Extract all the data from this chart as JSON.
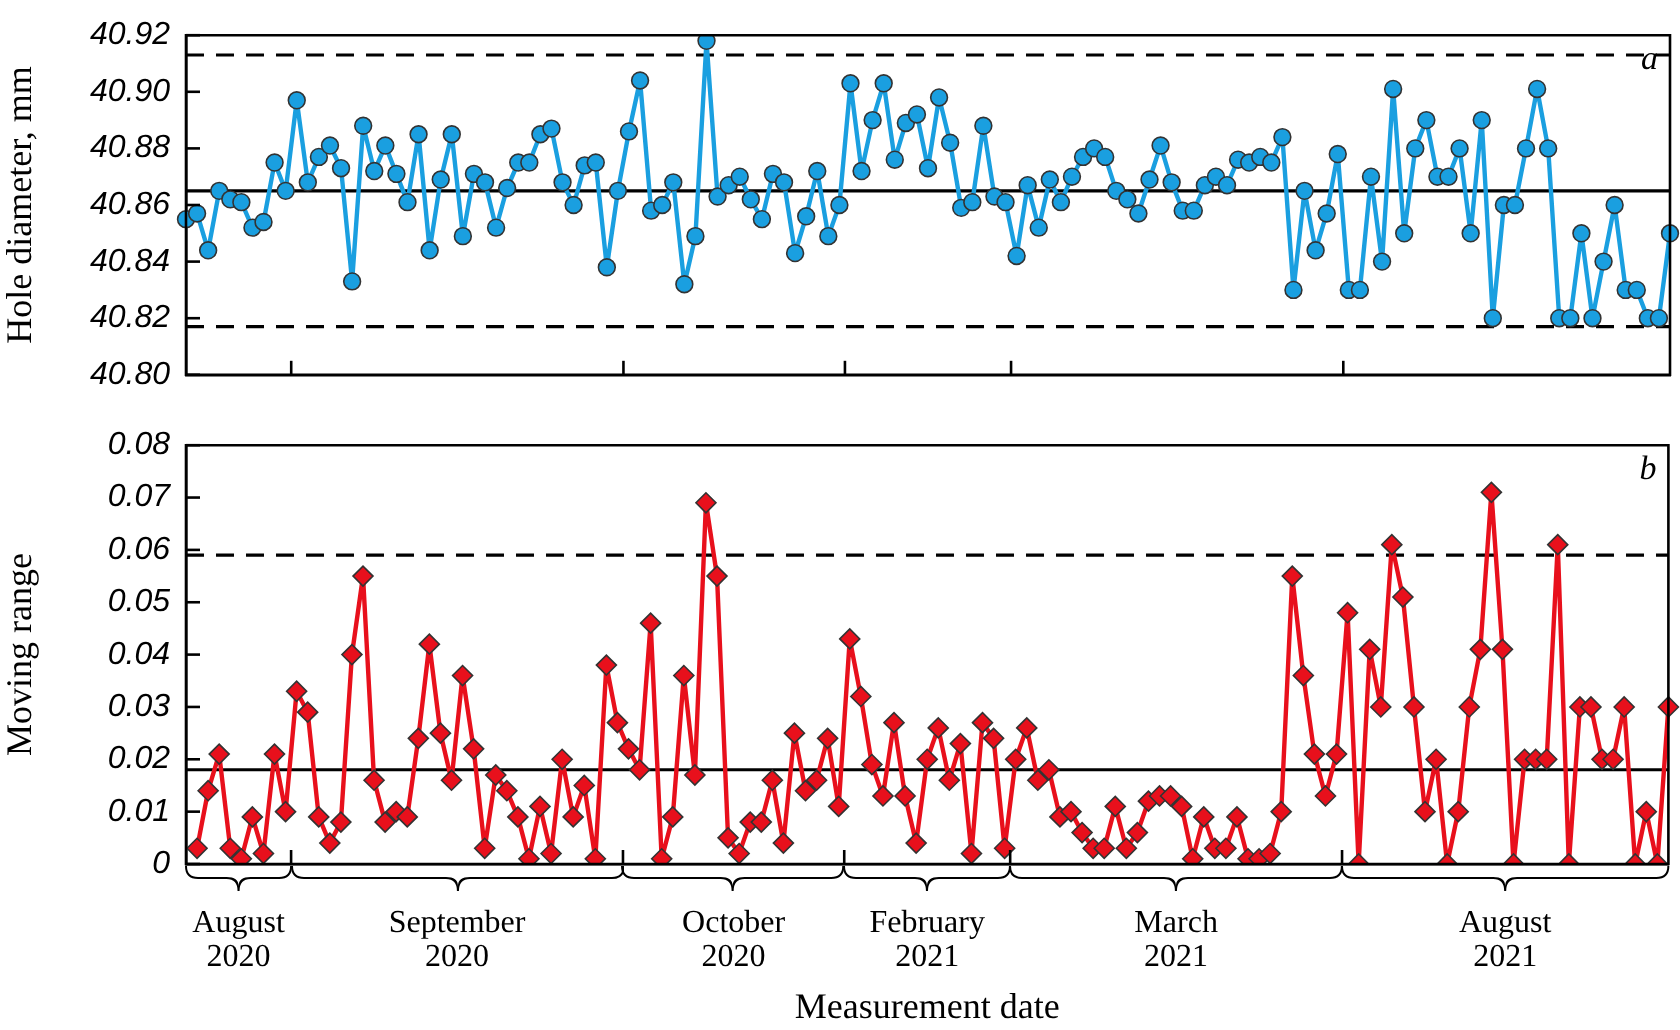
{
  "chart_data": [
    {
      "type": "line",
      "ylabel": "Hole diameter, mm",
      "categories": [
        null,
        null,
        null,
        null,
        null,
        null,
        null,
        null,
        null,
        null,
        null,
        null,
        null,
        null,
        null,
        null,
        null,
        null,
        null,
        null,
        null,
        null,
        null,
        null,
        null,
        null,
        null,
        null,
        null,
        null,
        null,
        null,
        null,
        null,
        null,
        null,
        null,
        null,
        null,
        null,
        null,
        null,
        null,
        null,
        null,
        null,
        null,
        null,
        null,
        null,
        null,
        null,
        null,
        null,
        null,
        null,
        null,
        null,
        null,
        null,
        null,
        null,
        null,
        null,
        null,
        null,
        null,
        null,
        null,
        null,
        null,
        null,
        null,
        null,
        null,
        null,
        null,
        null,
        null,
        null,
        null,
        null,
        null,
        null,
        null,
        null,
        null,
        null,
        null,
        null,
        null,
        null,
        null,
        null,
        null,
        null,
        null,
        null,
        null,
        null,
        null,
        null,
        null,
        null,
        null,
        null,
        null,
        null,
        null,
        null,
        null,
        null,
        null,
        null,
        null,
        null,
        null,
        null,
        null,
        null,
        null,
        null,
        null,
        null,
        null,
        null,
        null,
        null,
        null,
        null,
        null,
        null,
        null,
        null,
        null
      ],
      "series": [
        {
          "color": "#1a9fe0",
          "values": [
            40.855,
            40.857,
            40.844,
            40.865,
            40.862,
            40.861,
            40.852,
            40.854,
            40.875,
            40.865,
            40.897,
            40.868,
            40.877,
            40.881,
            40.873,
            40.833,
            40.888,
            40.872,
            40.881,
            40.871,
            40.861,
            40.885,
            40.844,
            40.869,
            40.885,
            40.849,
            40.871,
            40.868,
            40.852,
            40.866,
            40.875,
            40.875,
            40.885,
            40.887,
            40.868,
            40.86,
            40.874,
            40.875,
            40.838,
            40.865,
            40.886,
            40.904,
            40.858,
            40.86,
            40.868,
            40.832,
            40.849,
            40.918,
            40.863,
            40.867,
            40.87,
            40.862,
            40.855,
            40.871,
            40.868,
            40.843,
            40.856,
            40.872,
            40.849,
            40.86,
            40.903,
            40.872,
            40.89,
            40.903,
            40.876,
            40.889,
            40.892,
            40.873,
            40.898,
            40.882,
            40.859,
            40.861,
            40.888,
            40.863,
            40.861,
            40.842,
            40.867,
            40.852,
            40.869,
            40.861,
            40.87,
            40.877,
            40.88,
            40.877,
            40.865,
            40.862,
            40.857,
            40.869,
            40.881,
            40.868,
            40.858,
            40.858,
            40.867,
            40.87,
            40.867,
            40.876,
            40.875,
            40.877,
            40.875,
            40.884,
            40.83,
            40.865,
            40.844,
            40.857,
            40.878,
            40.83,
            40.83,
            40.87,
            40.84,
            40.901,
            40.85,
            40.88,
            40.89,
            40.87,
            40.87,
            40.88,
            40.85,
            40.89,
            40.82,
            40.86,
            40.86,
            40.88,
            40.901,
            40.88,
            40.82,
            40.82,
            40.85,
            40.82,
            40.84,
            40.86,
            40.83,
            40.83,
            40.82,
            40.82,
            40.85
          ]
        }
      ],
      "ylim": [
        40.8,
        40.92
      ],
      "yticks": [
        {
          "value": 40.8,
          "label": "40.80"
        },
        40.82,
        40.84,
        40.86,
        40.88,
        {
          "value": 40.9,
          "label": "40.90"
        },
        40.92
      ],
      "ref_lines": [
        {
          "axis": "y",
          "value": 40.865,
          "color": "#000000",
          "line_style": "solid"
        },
        {
          "axis": "y",
          "value": 40.913,
          "color": "#000000",
          "line_style": "dashed"
        },
        {
          "axis": "y",
          "value": 40.817,
          "color": "#000000",
          "line_style": "dashed"
        }
      ],
      "annotations": [
        "a"
      ],
      "marker": "circle",
      "line_style": "solid",
      "grid": false,
      "legend": false,
      "tick_labels": "y"
    },
    {
      "type": "line",
      "ylabel": "Moving range",
      "xlabel": "Measurement date",
      "categories": [
        null,
        null,
        null,
        null,
        null,
        null,
        null,
        null,
        null,
        null,
        null,
        null,
        null,
        null,
        null,
        null,
        null,
        null,
        null,
        null,
        null,
        null,
        null,
        null,
        null,
        null,
        null,
        null,
        null,
        null,
        null,
        null,
        null,
        null,
        null,
        null,
        null,
        null,
        null,
        null,
        null,
        null,
        null,
        null,
        null,
        null,
        null,
        null,
        null,
        null,
        null,
        null,
        null,
        null,
        null,
        null,
        null,
        null,
        null,
        null,
        null,
        null,
        null,
        null,
        null,
        null,
        null,
        null,
        null,
        null,
        null,
        null,
        null,
        null,
        null,
        null,
        null,
        null,
        null,
        null,
        null,
        null,
        null,
        null,
        null,
        null,
        null,
        null,
        null,
        null,
        null,
        null,
        null,
        null,
        null,
        null,
        null,
        null,
        null,
        null,
        null,
        null,
        null,
        null,
        null,
        null,
        null,
        null,
        null,
        null,
        null,
        null,
        null,
        null,
        null,
        null,
        null,
        null,
        null,
        null,
        null,
        null,
        null,
        null,
        null,
        null,
        null,
        null,
        null,
        null,
        null,
        null,
        null,
        null,
        null
      ],
      "series": [
        {
          "color": "#e8101c",
          "values": [
            null,
            0.003,
            0.014,
            0.021,
            0.003,
            0.001,
            0.009,
            0.002,
            0.021,
            0.01,
            0.033,
            0.029,
            0.009,
            0.004,
            0.008,
            0.04,
            0.055,
            0.016,
            0.008,
            0.01,
            0.009,
            0.024,
            0.042,
            0.025,
            0.016,
            0.036,
            0.022,
            0.003,
            0.017,
            0.014,
            0.009,
            0.001,
            0.011,
            0.002,
            0.02,
            0.009,
            0.015,
            0.001,
            0.038,
            0.027,
            0.022,
            0.018,
            0.046,
            0.001,
            0.009,
            0.036,
            0.017,
            0.069,
            0.055,
            0.005,
            0.002,
            0.008,
            0.008,
            0.016,
            0.004,
            0.025,
            0.014,
            0.016,
            0.024,
            0.011,
            0.043,
            0.032,
            0.019,
            0.013,
            0.027,
            0.013,
            0.004,
            0.02,
            0.026,
            0.016,
            0.023,
            0.002,
            0.027,
            0.024,
            0.003,
            0.02,
            0.026,
            0.016,
            0.018,
            0.009,
            0.01,
            0.006,
            0.003,
            0.003,
            0.011,
            0.003,
            0.006,
            0.012,
            0.013,
            0.013,
            0.011,
            0.001,
            0.009,
            0.003,
            0.003,
            0.009,
            0.001,
            0.001,
            0.002,
            0.01,
            0.055,
            0.036,
            0.021,
            0.013,
            0.021,
            0.048,
            0,
            0.041,
            0.03,
            0.061,
            0.051,
            0.03,
            0.01,
            0.02,
            0,
            0.01,
            0.03,
            0.041,
            0.071,
            0.041,
            0,
            0.02,
            0.02,
            0.02,
            0.061,
            0,
            0.03,
            0.03,
            0.02,
            0.02,
            0.03,
            0,
            0.01,
            0,
            0.03
          ]
        }
      ],
      "ylim": [
        0,
        0.08
      ],
      "yticks": [
        0,
        0.01,
        0.02,
        0.03,
        0.04,
        0.05,
        0.06,
        0.07,
        0.08
      ],
      "ref_lines": [
        {
          "axis": "y",
          "value": 0.018,
          "color": "#000000",
          "line_style": "solid"
        },
        {
          "axis": "y",
          "value": 0.059,
          "color": "#000000",
          "line_style": "dashed"
        }
      ],
      "annotations": [
        "b",
        "August 2020",
        "September 2020",
        "October 2020",
        "February 2021",
        "March 2021",
        "August 2021"
      ],
      "marker": "diamond",
      "line_style": "solid",
      "grid": false,
      "legend": false,
      "tick_labels": "y"
    }
  ]
}
